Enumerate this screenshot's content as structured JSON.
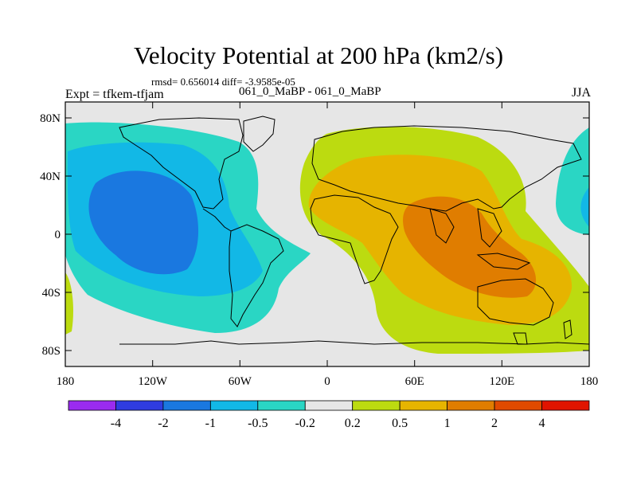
{
  "header": {
    "title": "Velocity Potential at 200 hPa (km2/s)",
    "stats": "rmsd= 0.656014 diff= -3.9585e-05",
    "left_string": "Expt = tfkem-tfjam",
    "center_string": "061_0_MaBP - 061_0_MaBP",
    "season": "JJA"
  },
  "axes": {
    "x_ticks": [
      "180",
      "120W",
      "60W",
      "0",
      "60E",
      "120E",
      "180"
    ],
    "y_ticks": [
      "80N",
      "40N",
      "0",
      "40S",
      "80S"
    ]
  },
  "colorbar": {
    "colors": [
      "#9a2bef",
      "#2f3ce0",
      "#1a78e0",
      "#12b8e6",
      "#2ad6c4",
      "#e6e6e6",
      "#bcdb10",
      "#e6b400",
      "#e07d00",
      "#e04a00",
      "#e01400"
    ],
    "labels": [
      "-4",
      "-2",
      "-1",
      "-0.5",
      "-0.2",
      "0.2",
      "0.5",
      "1",
      "2",
      "4"
    ]
  },
  "colors": {
    "background": "#e6e6e6",
    "neg_02": "#2ad6c4",
    "neg_05": "#12b8e6",
    "neg_1": "#1a78e0",
    "pos_02": "#bcdb10",
    "pos_05": "#e6b400",
    "pos_1": "#e07d00"
  }
}
